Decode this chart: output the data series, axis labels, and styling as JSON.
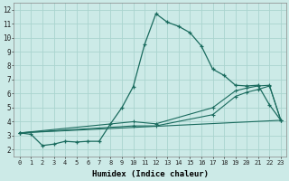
{
  "xlabel": "Humidex (Indice chaleur)",
  "bg_color": "#cceae7",
  "grid_color": "#aad4cf",
  "line_color": "#1a6b5e",
  "xlim": [
    -0.5,
    23.5
  ],
  "ylim": [
    1.5,
    12.5
  ],
  "xticks": [
    0,
    1,
    2,
    3,
    4,
    5,
    6,
    7,
    8,
    9,
    10,
    11,
    12,
    13,
    14,
    15,
    16,
    17,
    18,
    19,
    20,
    21,
    22,
    23
  ],
  "yticks": [
    2,
    3,
    4,
    5,
    6,
    7,
    8,
    9,
    10,
    11,
    12
  ],
  "line1_x": [
    0,
    1,
    2,
    3,
    4,
    5,
    6,
    7,
    8,
    9,
    10,
    11,
    12,
    13,
    14,
    15,
    16,
    17,
    18,
    19,
    20,
    21,
    22,
    23
  ],
  "line1_y": [
    3.2,
    3.1,
    2.3,
    2.4,
    2.6,
    2.55,
    2.6,
    2.6,
    3.85,
    5.0,
    6.5,
    9.5,
    11.7,
    11.1,
    10.8,
    10.35,
    9.4,
    7.75,
    7.3,
    6.6,
    6.55,
    6.6,
    5.2,
    4.1
  ],
  "line2_x": [
    0,
    23
  ],
  "line2_y": [
    3.2,
    4.1
  ],
  "line3_x": [
    0,
    10,
    12,
    17,
    19,
    20,
    21,
    22,
    23
  ],
  "line3_y": [
    3.2,
    4.0,
    3.85,
    5.0,
    6.2,
    6.4,
    6.55,
    6.6,
    4.1
  ],
  "line4_x": [
    0,
    10,
    12,
    17,
    19,
    20,
    21,
    22,
    23
  ],
  "line4_y": [
    3.2,
    3.7,
    3.7,
    4.5,
    5.8,
    6.1,
    6.3,
    6.55,
    4.1
  ]
}
